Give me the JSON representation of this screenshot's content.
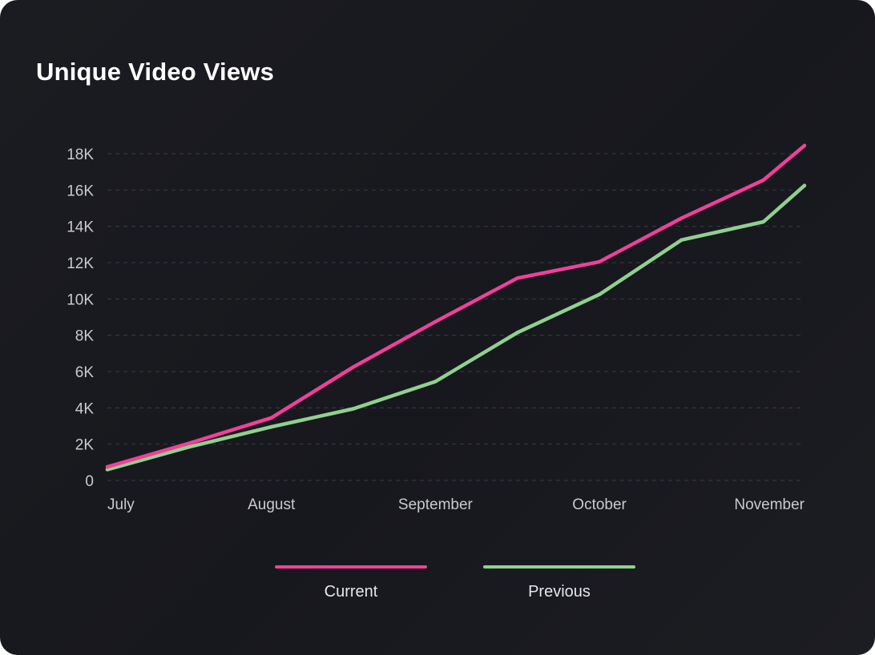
{
  "chart_data": {
    "type": "line",
    "title": "Unique Video Views",
    "xlabel": "",
    "ylabel": "",
    "categories": [
      "July",
      "August",
      "September",
      "October",
      "November"
    ],
    "y_ticks": [
      "0",
      "2K",
      "4K",
      "6K",
      "8K",
      "10K",
      "12K",
      "14K",
      "16K",
      "18K"
    ],
    "y_tick_values": [
      0,
      2000,
      4000,
      6000,
      8000,
      10000,
      12000,
      14000,
      16000,
      18000
    ],
    "ylim": [
      0,
      18000
    ],
    "x_range": [
      0,
      4.25
    ],
    "grid": "horizontal dashed",
    "legend_position": "bottom",
    "series": [
      {
        "name": "Current",
        "color": "#f0409b",
        "x": [
          0,
          0.5,
          1,
          1.5,
          2,
          2.5,
          3,
          3.5,
          4,
          4.25
        ],
        "values": [
          750,
          2050,
          3450,
          6250,
          8750,
          11150,
          12050,
          14450,
          16550,
          18450
        ]
      },
      {
        "name": "Previous",
        "color": "#8fd18f",
        "x": [
          0,
          0.5,
          1,
          1.5,
          2,
          2.5,
          3,
          3.5,
          4,
          4.25
        ],
        "values": [
          600,
          1850,
          2950,
          3950,
          5450,
          8150,
          10250,
          13250,
          14250,
          16250
        ]
      }
    ]
  }
}
